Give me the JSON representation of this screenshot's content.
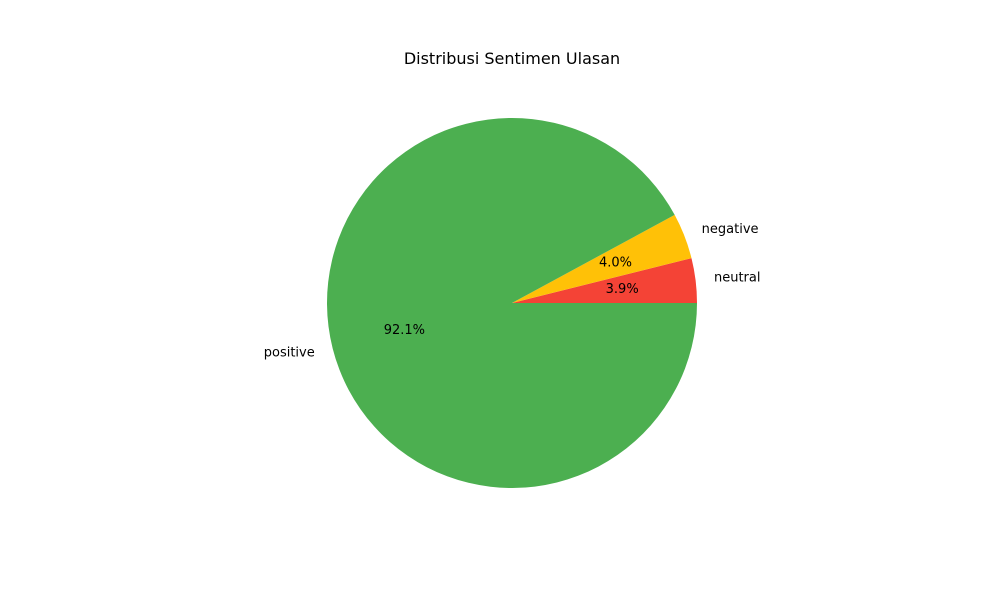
{
  "chart_data": {
    "type": "pie",
    "title": "Distribusi Sentimen Ulasan",
    "slices": [
      {
        "label": "neutral",
        "value": 3.9,
        "pct_label": "3.9%",
        "color": "#F44336"
      },
      {
        "label": "negative",
        "value": 4.0,
        "pct_label": "4.0%",
        "color": "#FFC107"
      },
      {
        "label": "positive",
        "value": 92.1,
        "pct_label": "92.1%",
        "color": "#4CAF50"
      }
    ],
    "start_angle_deg": 0,
    "direction": "counterclockwise",
    "legend": "none"
  }
}
